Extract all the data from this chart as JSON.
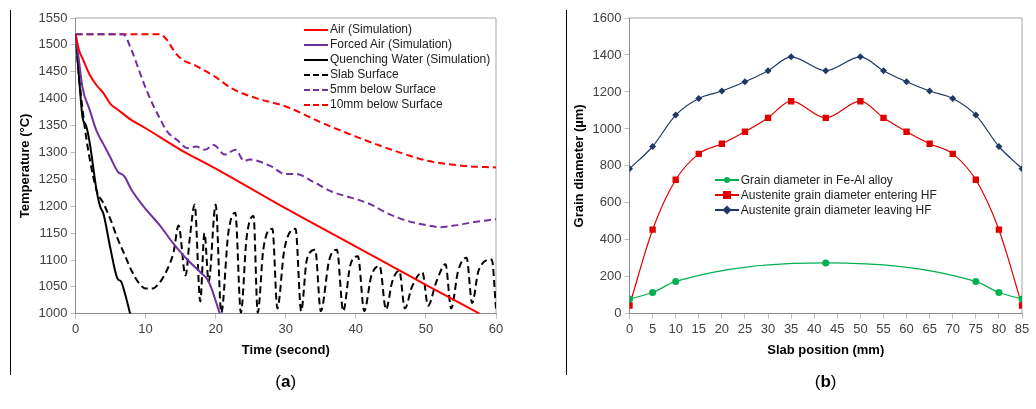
{
  "chart_data": [
    {
      "type": "line",
      "xlabel": "Time (second)",
      "ylabel": "Temperature (°C)",
      "xlim": [
        0,
        60
      ],
      "xticks": [
        0,
        10,
        20,
        30,
        40,
        50,
        60
      ],
      "ylim": [
        1000,
        1550
      ],
      "yticks": [
        1000,
        1050,
        1100,
        1150,
        1200,
        1250,
        1300,
        1350,
        1400,
        1450,
        1500,
        1550
      ],
      "legend": "top right",
      "annotations": [
        "(a)"
      ],
      "series": [
        {
          "name": "Air (Simulation)",
          "color": "#ff0000",
          "line_style": "solid",
          "x": [
            0,
            0.5,
            1,
            2,
            3,
            4,
            5,
            6,
            8,
            10,
            15,
            20,
            30,
            40,
            50,
            57.7
          ],
          "values": [
            1520,
            1490,
            1475,
            1445,
            1425,
            1410,
            1390,
            1380,
            1360,
            1345,
            1305,
            1270,
            1196,
            1125,
            1054,
            1000
          ]
        },
        {
          "name": "Forced Air (Simulation)",
          "color": "#7030a0",
          "line_style": "solid",
          "x": [
            0,
            0.5,
            1,
            2,
            3,
            4,
            5,
            6,
            7,
            8,
            10,
            12,
            14,
            16,
            18,
            19,
            20.6
          ],
          "values": [
            1520,
            1470,
            1420,
            1380,
            1340,
            1315,
            1290,
            1265,
            1255,
            1230,
            1195,
            1165,
            1130,
            1100,
            1075,
            1060,
            1000
          ]
        },
        {
          "name": "Quenching Water (Simulation)",
          "color": "#000000",
          "line_style": "solid",
          "x": [
            0,
            0.5,
            1,
            1.5,
            2,
            3,
            3.5,
            4,
            5,
            6,
            6.5,
            7,
            7.8
          ],
          "values": [
            1520,
            1440,
            1365,
            1350,
            1320,
            1230,
            1200,
            1185,
            1120,
            1065,
            1060,
            1040,
            1000
          ]
        },
        {
          "name": "Slab Surface",
          "color": "#000000",
          "line_style": "dashed",
          "x": [
            0,
            0.5,
            1,
            1.5,
            2,
            3,
            4,
            5,
            6,
            7,
            8,
            9,
            10,
            11,
            12,
            13,
            14,
            14.7,
            15.7,
            16.3,
            17,
            17.8,
            18.4,
            19,
            20,
            20.8,
            21.8,
            22.8,
            23.6,
            24.4,
            25.4,
            26,
            26.8,
            28.1,
            28.8,
            29.8,
            31.4,
            32.2,
            33,
            34.2,
            35,
            36.2,
            37.3,
            38.2,
            39.2,
            40.3,
            41.2,
            42.2,
            43.4,
            44.3,
            45.2,
            46.2,
            47,
            48,
            49.5,
            50.3,
            51.5,
            52.8,
            53.6,
            54.6,
            55.8,
            56.6,
            57.5,
            59.4,
            60
          ],
          "values": [
            1520,
            1440,
            1380,
            1330,
            1290,
            1230,
            1205,
            1175,
            1140,
            1110,
            1080,
            1058,
            1047,
            1047,
            1058,
            1080,
            1115,
            1164,
            1071,
            1140,
            1203,
            1023,
            1150,
            1060,
            1203,
            1002,
            1150,
            1188,
            1002,
            1140,
            1182,
            1002,
            1120,
            1158,
            1010,
            1120,
            1158,
            1005,
            1100,
            1119,
            1005,
            1100,
            1119,
            1005,
            1090,
            1107,
            1005,
            1070,
            1089,
            1008,
            1060,
            1080,
            1010,
            1050,
            1077,
            1015,
            1060,
            1092,
            1010,
            1080,
            1104,
            1020,
            1080,
            1101,
            1010
          ]
        },
        {
          "name": "5mm below Surface",
          "color": "#7030a0",
          "line_style": "dashed",
          "x": [
            0,
            6.8,
            8,
            9,
            10,
            11,
            12.2,
            13,
            14.5,
            16,
            17.2,
            18.5,
            19.7,
            21.3,
            22.8,
            24.1,
            24.8,
            27.8,
            29.9,
            31.4,
            34,
            36.6,
            39.6,
            42.2,
            44.3,
            47.3,
            50.4,
            51.9,
            54,
            56.6,
            60
          ],
          "values": [
            1520,
            1520,
            1490,
            1455,
            1420,
            1390,
            1359,
            1340,
            1323,
            1308,
            1311,
            1305,
            1314,
            1296,
            1305,
            1284,
            1287,
            1275,
            1260,
            1260,
            1245,
            1227,
            1215,
            1203,
            1188,
            1173,
            1164,
            1161,
            1164,
            1170,
            1176
          ]
        },
        {
          "name": "10mm below Surface",
          "color": "#ff0000",
          "line_style": "dashed",
          "x": [
            0,
            12,
            13,
            14,
            15,
            17.2,
            20,
            22.3,
            26,
            29.9,
            35,
            40.1,
            45.1,
            50.4,
            55.5,
            60
          ],
          "values": [
            1520,
            1520,
            1510,
            1490,
            1475,
            1461,
            1440,
            1419,
            1400,
            1386,
            1356,
            1329,
            1305,
            1284,
            1275,
            1272
          ]
        }
      ]
    },
    {
      "type": "line",
      "xlabel": "Slab position (mm)",
      "ylabel": "Grain diameter (µm)",
      "xlim": [
        0,
        85
      ],
      "xticks": [
        0,
        5,
        10,
        15,
        20,
        25,
        30,
        35,
        40,
        45,
        50,
        55,
        60,
        65,
        70,
        75,
        80,
        85
      ],
      "ylim": [
        0,
        1600
      ],
      "yticks": [
        0,
        200,
        400,
        600,
        800,
        1000,
        1200,
        1400,
        1600
      ],
      "legend": "center",
      "annotations": [
        "(b)"
      ],
      "series": [
        {
          "name": "Grain diameter in Fe-Al alloy",
          "color": "#00b050",
          "marker": "circle",
          "x": [
            0,
            5,
            10,
            42.5,
            75,
            80,
            85
          ],
          "values": [
            80,
            115,
            175,
            275,
            175,
            115,
            80
          ]
        },
        {
          "name": "Austenite grain diameter entering HF",
          "color": "#e00000",
          "marker": "square",
          "x": [
            0,
            5,
            10,
            15,
            20,
            25,
            30,
            35,
            42.5,
            50,
            55,
            60,
            65,
            70,
            75,
            80,
            85
          ],
          "values": [
            45,
            455,
            725,
            865,
            920,
            985,
            1060,
            1150,
            1060,
            1150,
            1060,
            985,
            920,
            865,
            725,
            455,
            45
          ]
        },
        {
          "name": "Austenite grain diameter leaving HF",
          "color": "#203864",
          "marker": "diamond",
          "x": [
            0,
            5,
            10,
            15,
            20,
            25,
            30,
            35,
            42.5,
            50,
            55,
            60,
            65,
            70,
            75,
            80,
            85
          ],
          "values": [
            785,
            905,
            1075,
            1165,
            1205,
            1255,
            1315,
            1390,
            1315,
            1390,
            1315,
            1255,
            1205,
            1165,
            1075,
            905,
            785
          ]
        }
      ]
    }
  ]
}
